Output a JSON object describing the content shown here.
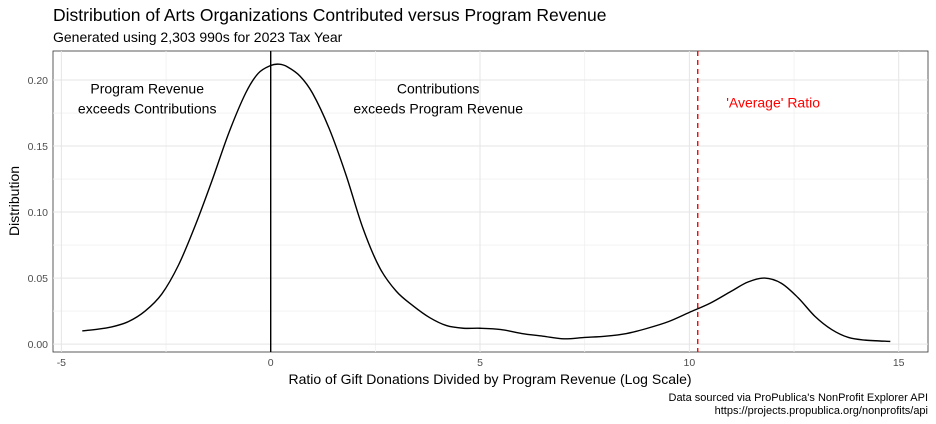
{
  "chart_data": {
    "type": "line",
    "title": "Distribution of Arts Organizations Contributed versus Program Revenue",
    "subtitle": "Generated using 2,303 990s for 2023 Tax Year",
    "xlabel": "Ratio of Gift Donations Divided by Program Revenue (Log Scale)",
    "ylabel": "Distribution",
    "xlim": [
      -5.2,
      15.7
    ],
    "ylim": [
      -0.006,
      0.222
    ],
    "xticks": [
      -5,
      0,
      5,
      10,
      15
    ],
    "xtick_labels": [
      "-5",
      "0",
      "5",
      "10",
      "15"
    ],
    "yticks": [
      0.0,
      0.05,
      0.1,
      0.15,
      0.2
    ],
    "ytick_labels": [
      "0.00",
      "0.05",
      "0.10",
      "0.15",
      "0.20"
    ],
    "grid": true,
    "series": [
      {
        "color": "#000000",
        "x": [
          -4.5,
          -4.2,
          -3.8,
          -3.4,
          -3.0,
          -2.6,
          -2.2,
          -1.8,
          -1.4,
          -1.0,
          -0.6,
          -0.3,
          0.0,
          0.2,
          0.4,
          0.7,
          1.0,
          1.4,
          1.8,
          2.2,
          2.6,
          3.0,
          3.4,
          3.8,
          4.2,
          4.6,
          5.0,
          5.5,
          6.0,
          6.5,
          7.0,
          7.5,
          8.0,
          8.5,
          9.0,
          9.5,
          10.0,
          10.5,
          11.0,
          11.4,
          11.8,
          12.2,
          12.6,
          13.0,
          13.4,
          13.8,
          14.2,
          14.8
        ],
        "y": [
          0.01,
          0.011,
          0.013,
          0.017,
          0.025,
          0.038,
          0.06,
          0.09,
          0.124,
          0.16,
          0.19,
          0.205,
          0.211,
          0.212,
          0.21,
          0.203,
          0.19,
          0.163,
          0.128,
          0.088,
          0.058,
          0.04,
          0.029,
          0.02,
          0.014,
          0.012,
          0.012,
          0.011,
          0.008,
          0.006,
          0.004,
          0.005,
          0.006,
          0.008,
          0.012,
          0.017,
          0.024,
          0.031,
          0.04,
          0.047,
          0.05,
          0.046,
          0.035,
          0.021,
          0.011,
          0.005,
          0.003,
          0.002
        ]
      }
    ],
    "reference_lines": [
      {
        "axis": "x",
        "value": 0,
        "color": "#000000",
        "style": "solid"
      },
      {
        "axis": "x",
        "value": 10.2,
        "color": "#ff0000",
        "style": "dashed"
      }
    ],
    "annotations": [
      {
        "lines": [
          "Program Revenue",
          "exceeds Contributions"
        ],
        "x": -2.95,
        "y": 0.186,
        "color": "#000000"
      },
      {
        "lines": [
          "Contributions",
          "exceeds Program Revenue"
        ],
        "x": 4.0,
        "y": 0.186,
        "color": "#000000"
      },
      {
        "lines": [
          "'Average' Ratio"
        ],
        "x": 12.0,
        "y": 0.183,
        "color": "#ff0000"
      }
    ],
    "caption": [
      "Data sourced via ProPublica's NonProfit Explorer API",
      "https://projects.propublica.org/nonprofits/api"
    ]
  }
}
